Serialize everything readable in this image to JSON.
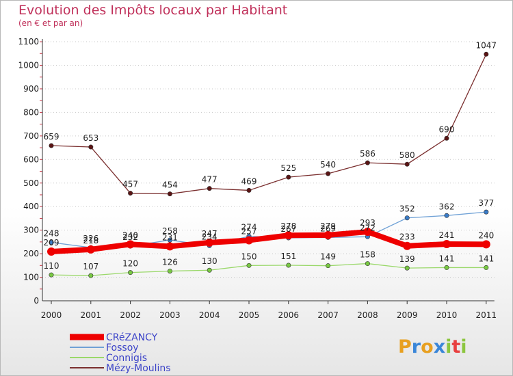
{
  "chart_data": {
    "type": "line",
    "title": "Evolution des Impôts locaux par Habitant",
    "subtitle": "(en € et par an)",
    "xlabel": "",
    "ylabel": "",
    "ylim": [
      0,
      1100
    ],
    "yticks": [
      0,
      100,
      200,
      300,
      400,
      500,
      600,
      700,
      800,
      900,
      1000,
      1100
    ],
    "categories": [
      "2000",
      "2001",
      "2002",
      "2003",
      "2004",
      "2005",
      "2006",
      "2007",
      "2008",
      "2009",
      "2010",
      "2011"
    ],
    "series": [
      {
        "name": "Mézy-Moulins",
        "color": "#7a2e2e",
        "marker": "#5a1414",
        "width": 1.3,
        "values": [
          659,
          653,
          457,
          454,
          477,
          469,
          525,
          540,
          586,
          580,
          690,
          1047
        ],
        "labels": [
          "659",
          "653",
          "457",
          "454",
          "477",
          "469",
          "525",
          "540",
          "586",
          "580",
          "690",
          "1047"
        ]
      },
      {
        "name": "Fossoy",
        "color": "#6fa1d6",
        "marker": "#3a7cc8",
        "width": 1.3,
        "values": [
          248,
          226,
          232,
          258,
          234,
          274,
          267,
          269,
          272,
          352,
          362,
          377
        ],
        "labels": [
          "248",
          "226",
          "232",
          "258",
          "234",
          "274",
          "267",
          "269",
          "272",
          "352",
          "362",
          "377"
        ]
      },
      {
        "name": "Connigis",
        "color": "#9ad86a",
        "marker": "#78c842",
        "width": 1.3,
        "values": [
          110,
          107,
          120,
          126,
          130,
          150,
          151,
          149,
          158,
          139,
          141,
          141
        ],
        "labels": [
          "110",
          "107",
          "120",
          "126",
          "130",
          "150",
          "151",
          "149",
          "158",
          "139",
          "141",
          "141"
        ]
      },
      {
        "name": "CRéZANCY",
        "color": "#ee0000",
        "marker": "#ee0000",
        "width": 8,
        "values": [
          209,
          218,
          240,
          231,
          247,
          257,
          278,
          279,
          293,
          233,
          241,
          240
        ],
        "labels": [
          "209",
          "218",
          "240",
          "231",
          "247",
          "257",
          "278",
          "279",
          "293",
          "233",
          "241",
          "240"
        ]
      }
    ],
    "legend": [
      "CRéZANCY",
      "Fossoy",
      "Connigis",
      "Mézy-Moulins"
    ],
    "legend_position": "bottom-left"
  },
  "logo": {
    "text": "Proxiti"
  }
}
